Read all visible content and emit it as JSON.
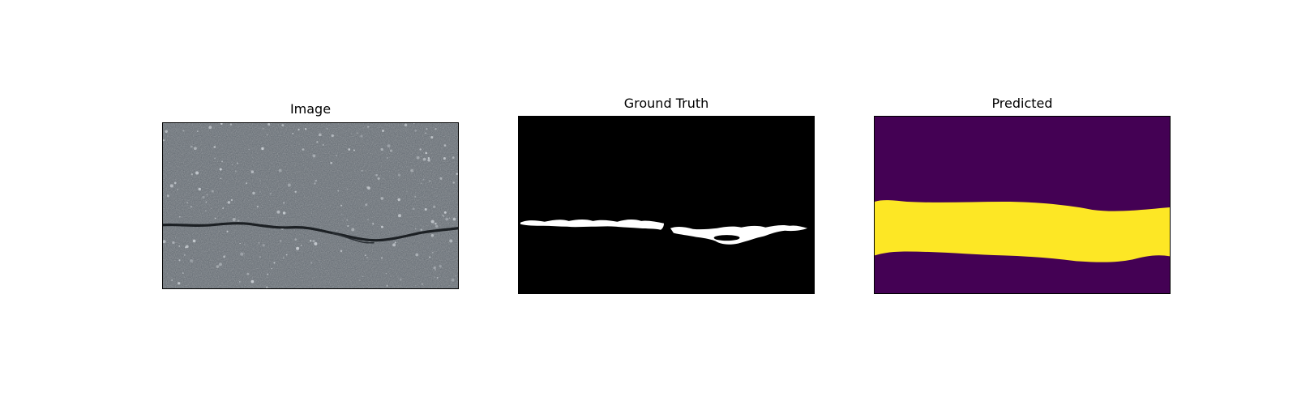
{
  "panels": [
    {
      "title": "Image"
    },
    {
      "title": "Ground Truth"
    },
    {
      "title": "Predicted"
    }
  ],
  "colors": {
    "asphalt": "#626a72",
    "crack": "#1c2024",
    "mask_background": "#000000",
    "mask_foreground": "#ffffff",
    "pred_background": "#440154",
    "pred_foreground": "#fde725"
  }
}
